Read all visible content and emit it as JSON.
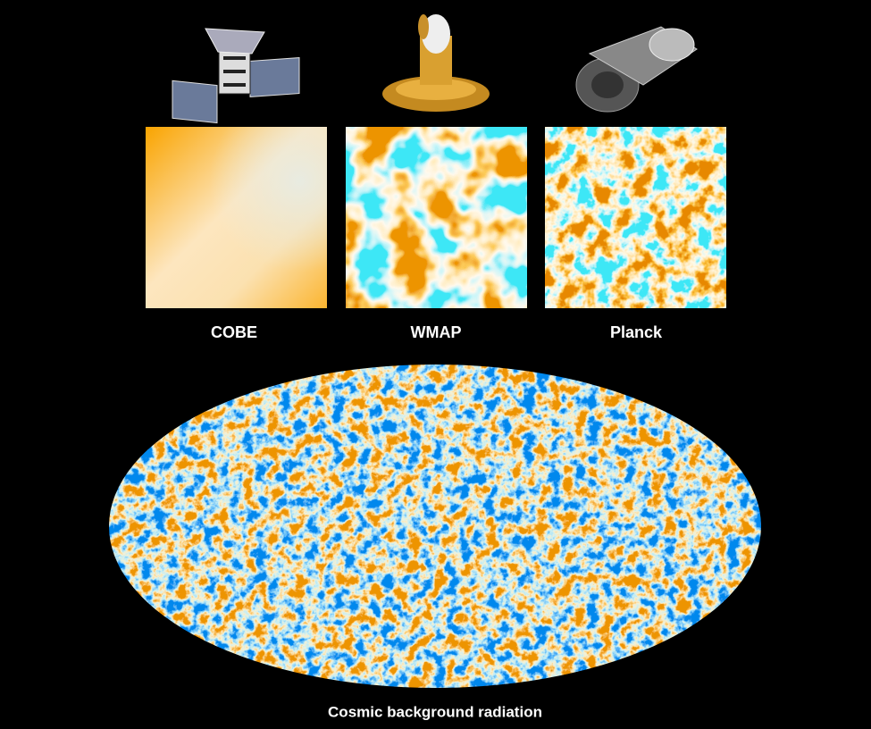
{
  "panels": [
    {
      "label": "COBE"
    },
    {
      "label": "WMAP"
    },
    {
      "label": "Planck"
    }
  ],
  "caption": "Cosmic background radiation"
}
